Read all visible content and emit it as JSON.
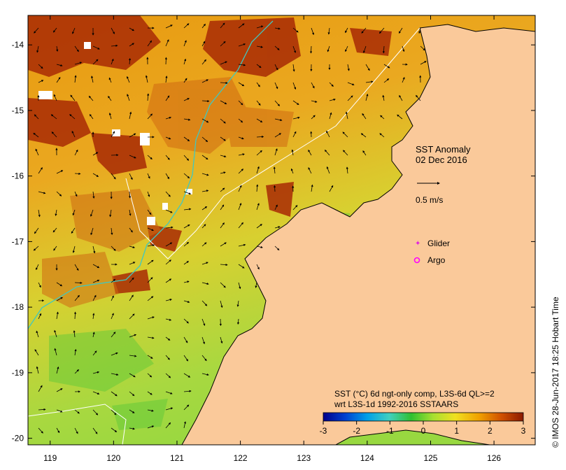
{
  "map": {
    "title": "SST Anomaly",
    "date": "02 Dec 2016",
    "current_scale_label": "0.5 m/s",
    "credit": "© IMOS 28-Jun-2017 18:25 Hobart Time",
    "legend": {
      "glider_label": "Glider",
      "argo_label": "Argo",
      "glider_color": "#e020e0",
      "argo_color": "#ff00ff"
    },
    "colorbar": {
      "caption_line1": "SST (°C) 6d ngt-only comp, L3S-6d QL>=2",
      "caption_line2": "wrt L3S-1d 1992-2016 SSTAARS",
      "min": -3,
      "max": 3,
      "tick_labels": [
        "-3",
        "-2",
        "-1",
        "0",
        "1",
        "2",
        "3"
      ],
      "colors": [
        "#00008b",
        "#0040d0",
        "#00a0e8",
        "#40d0c0",
        "#30c030",
        "#a8e030",
        "#f0e020",
        "#f0a000",
        "#d05000",
        "#8b1a00"
      ]
    },
    "axes": {
      "lon_labels": [
        "119",
        "120",
        "121",
        "122",
        "123",
        "124",
        "125",
        "126"
      ],
      "lat_labels": [
        "-14",
        "-15",
        "-16",
        "-17",
        "-18",
        "-19",
        "-20"
      ],
      "lon_range": [
        118.65,
        126.65
      ],
      "lat_range": [
        -20.1,
        -13.55
      ]
    },
    "colors": {
      "land": "#fac99a",
      "coast": "#000000",
      "isobath_white": "#ffffff",
      "isobath_cyan": "#40c8c0"
    }
  }
}
